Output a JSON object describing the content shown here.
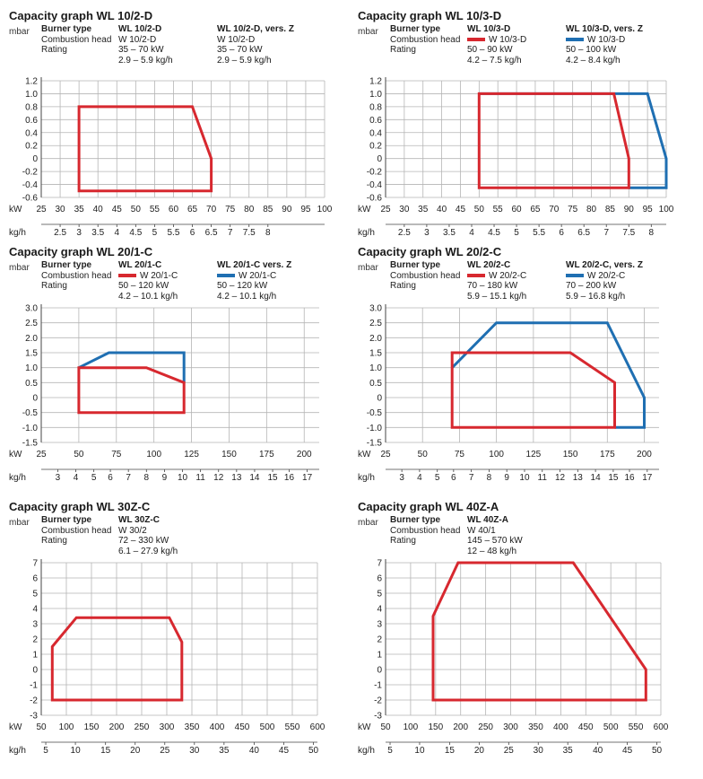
{
  "colors": {
    "standard": "#d7282f",
    "version_z": "#1f6fb2",
    "grid": "#b5b5b5"
  },
  "common_labels": {
    "unit_y": "mbar",
    "unit_kw": "kW",
    "unit_kgh": "kg/h",
    "burner_type": "Burner type",
    "combustion_head": "Combustion head",
    "rating": "Rating"
  },
  "chart_data": [
    {
      "type": "area",
      "title": "Capacity graph WL 10/2-D",
      "info": {
        "burner_type": [
          "WL 10/2-D",
          "WL 10/2-D, vers. Z"
        ],
        "combustion_head": [
          "W 10/2-D",
          "W 10/2-D"
        ],
        "rating_kw": [
          "35 – 70 kW",
          "35 – 70 kW"
        ],
        "rating_kgh": [
          "2.9 – 5.9 kg/h",
          "2.9 – 5.9 kg/h"
        ]
      },
      "xlim": [
        25,
        100
      ],
      "ylim": [
        -0.6,
        1.2
      ],
      "y_ticks": [
        "-0.6",
        "-0.4",
        "-0.2",
        "0",
        "0.2",
        "0.4",
        "0.6",
        "0.8",
        "1.0",
        "1.2"
      ],
      "y_tick_values": [
        -0.6,
        -0.4,
        -0.2,
        0,
        0.2,
        0.4,
        0.6,
        0.8,
        1.0,
        1.2
      ],
      "kw_ticks": [
        25,
        30,
        35,
        40,
        45,
        50,
        55,
        60,
        65,
        70,
        75,
        80,
        85,
        90,
        95,
        100
      ],
      "kgh_ticks": [
        "2.5",
        "3",
        "3.5",
        "4",
        "4.5",
        "5",
        "5.5",
        "6",
        "6.5",
        "7",
        "7.5",
        "8"
      ],
      "kgh_tick_kw": [
        30,
        35,
        40,
        45,
        50,
        55,
        60,
        65,
        70,
        75,
        80,
        85
      ],
      "series": [
        {
          "color": "standard",
          "points": [
            [
              35,
              0.8
            ],
            [
              65,
              0.8
            ],
            [
              70,
              0
            ],
            [
              70,
              -0.5
            ],
            [
              35,
              -0.5
            ]
          ]
        }
      ]
    },
    {
      "type": "area",
      "title": "Capacity graph WL 10/3-D",
      "info": {
        "burner_type": [
          "WL 10/3-D",
          "WL 10/3-D, vers. Z"
        ],
        "combustion_head": [
          "W 10/3-D",
          "W 10/3-D"
        ],
        "rating_kw": [
          "50 – 90 kW",
          "50 – 100 kW"
        ],
        "rating_kgh": [
          "4.2 – 7.5 kg/h",
          "4.2 – 8.4 kg/h"
        ],
        "swatch": true
      },
      "xlim": [
        25,
        100
      ],
      "ylim": [
        -0.6,
        1.2
      ],
      "y_ticks": [
        "-0.6",
        "-0.4",
        "-0.2",
        "0",
        "0.2",
        "0.4",
        "0.6",
        "0.8",
        "1.0",
        "1.2"
      ],
      "y_tick_values": [
        -0.6,
        -0.4,
        -0.2,
        0,
        0.2,
        0.4,
        0.6,
        0.8,
        1.0,
        1.2
      ],
      "kw_ticks": [
        25,
        30,
        35,
        40,
        45,
        50,
        55,
        60,
        65,
        70,
        75,
        80,
        85,
        90,
        95,
        100
      ],
      "kgh_ticks": [
        "2.5",
        "3",
        "3.5",
        "4",
        "4.5",
        "5",
        "5.5",
        "6",
        "6.5",
        "7",
        "7.5",
        "8"
      ],
      "kgh_tick_kw": [
        30,
        36,
        42,
        48,
        54,
        60,
        66,
        72,
        78,
        84,
        90,
        96
      ],
      "series": [
        {
          "color": "version_z",
          "points": [
            [
              50,
              1.0
            ],
            [
              95,
              1.0
            ],
            [
              100,
              0
            ],
            [
              100,
              -0.45
            ],
            [
              90,
              -0.45
            ]
          ]
        },
        {
          "color": "standard",
          "points": [
            [
              50,
              1.0
            ],
            [
              86,
              1.0
            ],
            [
              90,
              0
            ],
            [
              90,
              -0.45
            ],
            [
              50,
              -0.45
            ]
          ]
        }
      ]
    },
    {
      "type": "area",
      "title": "Capacity graph WL 20/1-C",
      "info": {
        "burner_type": [
          "WL 20/1-C",
          "WL 20/1-C vers. Z"
        ],
        "combustion_head": [
          "W 20/1-C",
          "W 20/1-C"
        ],
        "rating_kw": [
          "50 – 120 kW",
          "50 – 120 kW"
        ],
        "rating_kgh": [
          "4.2 – 10.1 kg/h",
          "4.2 – 10.1 kg/h"
        ],
        "swatch": true
      },
      "xlim": [
        25,
        210
      ],
      "ylim": [
        -1.5,
        3.0
      ],
      "y_ticks": [
        "-1.5",
        "-1.0",
        "-0.5",
        "0",
        "0.5",
        "1.0",
        "1.5",
        "2.0",
        "2.5",
        "3.0"
      ],
      "y_tick_values": [
        -1.5,
        -1.0,
        -0.5,
        0,
        0.5,
        1.0,
        1.5,
        2.0,
        2.5,
        3.0
      ],
      "kw_ticks": [
        25,
        50,
        75,
        100,
        125,
        150,
        175,
        200
      ],
      "kgh_ticks": [
        "3",
        "4",
        "5",
        "6",
        "7",
        "8",
        "9",
        "10",
        "11",
        "12",
        "13",
        "14",
        "15",
        "16",
        "17"
      ],
      "kgh_tick_kw": [
        36,
        48,
        60,
        71,
        83,
        95,
        107,
        119,
        131,
        143,
        155,
        167,
        179,
        190,
        202
      ],
      "series": [
        {
          "color": "version_z",
          "points": [
            [
              50,
              1.0
            ],
            [
              70,
              1.5
            ],
            [
              120,
              1.5
            ],
            [
              120,
              0.5
            ]
          ]
        },
        {
          "color": "standard",
          "points": [
            [
              50,
              1.0
            ],
            [
              95,
              1.0
            ],
            [
              120,
              0.5
            ],
            [
              120,
              -0.5
            ],
            [
              50,
              -0.5
            ]
          ]
        }
      ]
    },
    {
      "type": "area",
      "title": "Capacity graph WL 20/2-C",
      "info": {
        "burner_type": [
          "WL 20/2-C",
          "WL 20/2-C, vers. Z"
        ],
        "combustion_head": [
          "W 20/2-C",
          "W 20/2-C"
        ],
        "rating_kw": [
          "70 – 180 kW",
          "70 – 200 kW"
        ],
        "rating_kgh": [
          "5.9 – 15.1 kg/h",
          "5.9 – 16.8 kg/h"
        ],
        "swatch": true
      },
      "xlim": [
        25,
        210
      ],
      "ylim": [
        -1.5,
        3.0
      ],
      "y_ticks": [
        "-1.5",
        "-1.0",
        "-0.5",
        "0",
        "0.5",
        "1.0",
        "1.5",
        "2.0",
        "2.5",
        "3.0"
      ],
      "y_tick_values": [
        -1.5,
        -1.0,
        -0.5,
        0,
        0.5,
        1.0,
        1.5,
        2.0,
        2.5,
        3.0
      ],
      "kw_ticks": [
        25,
        50,
        75,
        100,
        125,
        150,
        175,
        200
      ],
      "kgh_ticks": [
        "3",
        "4",
        "5",
        "6",
        "7",
        "8",
        "9",
        "10",
        "11",
        "12",
        "13",
        "14",
        "15",
        "16",
        "17"
      ],
      "kgh_tick_kw": [
        36,
        48,
        60,
        71,
        83,
        95,
        107,
        119,
        131,
        143,
        155,
        167,
        179,
        190,
        202
      ],
      "series": [
        {
          "color": "version_z",
          "points": [
            [
              70,
              1.0
            ],
            [
              100,
              2.5
            ],
            [
              175,
              2.5
            ],
            [
              200,
              0
            ],
            [
              200,
              -1.0
            ],
            [
              180,
              -1.0
            ]
          ]
        },
        {
          "color": "standard",
          "points": [
            [
              70,
              1.5
            ],
            [
              150,
              1.5
            ],
            [
              180,
              0.5
            ],
            [
              180,
              -1.0
            ],
            [
              70,
              -1.0
            ]
          ]
        }
      ]
    },
    {
      "type": "area",
      "title": "Capacity graph WL 30Z-C",
      "info": {
        "burner_type": [
          "WL 30Z-C"
        ],
        "combustion_head": [
          "W 30/2"
        ],
        "rating_kw": [
          "72 – 330 kW"
        ],
        "rating_kgh": [
          "6.1 – 27.9 kg/h"
        ]
      },
      "xlim": [
        50,
        600
      ],
      "ylim": [
        -3,
        7
      ],
      "y_ticks": [
        "-3",
        "-2",
        "-1",
        "0",
        "1",
        "2",
        "3",
        "4",
        "5",
        "6",
        "7"
      ],
      "y_tick_values": [
        -3,
        -2,
        -1,
        0,
        1,
        2,
        3,
        4,
        5,
        6,
        7
      ],
      "kw_ticks": [
        50,
        100,
        150,
        200,
        250,
        300,
        350,
        400,
        450,
        500,
        550,
        600
      ],
      "kgh_ticks": [
        "5",
        "10",
        "15",
        "20",
        "25",
        "30",
        "35",
        "40",
        "45",
        "50"
      ],
      "kgh_tick_kw": [
        59,
        118,
        178,
        237,
        296,
        355,
        414,
        474,
        533,
        592
      ],
      "series": [
        {
          "color": "standard",
          "points": [
            [
              72,
              1.5
            ],
            [
              120,
              3.4
            ],
            [
              305,
              3.4
            ],
            [
              330,
              1.8
            ],
            [
              330,
              -2
            ],
            [
              72,
              -2
            ]
          ]
        }
      ]
    },
    {
      "type": "area",
      "title": "Capacity graph WL 40Z-A",
      "info": {
        "burner_type": [
          "WL 40Z-A"
        ],
        "combustion_head": [
          "W 40/1"
        ],
        "rating_kw": [
          "145 – 570 kW"
        ],
        "rating_kgh": [
          "12 –  48 kg/h"
        ]
      },
      "xlim": [
        50,
        600
      ],
      "ylim": [
        -3,
        7
      ],
      "y_ticks": [
        "-3",
        "-2",
        "-1",
        "0",
        "1",
        "2",
        "3",
        "4",
        "5",
        "6",
        "7"
      ],
      "y_tick_values": [
        -3,
        -2,
        -1,
        0,
        1,
        2,
        3,
        4,
        5,
        6,
        7
      ],
      "kw_ticks": [
        50,
        100,
        150,
        200,
        250,
        300,
        350,
        400,
        450,
        500,
        550,
        600
      ],
      "kgh_ticks": [
        "5",
        "10",
        "15",
        "20",
        "25",
        "30",
        "35",
        "40",
        "45",
        "50"
      ],
      "kgh_tick_kw": [
        59,
        118,
        178,
        237,
        296,
        355,
        414,
        474,
        533,
        592
      ],
      "series": [
        {
          "color": "standard",
          "points": [
            [
              145,
              3.5
            ],
            [
              195,
              7.0
            ],
            [
              425,
              7.0
            ],
            [
              570,
              0
            ],
            [
              570,
              -2
            ],
            [
              145,
              -2
            ]
          ]
        }
      ]
    }
  ]
}
